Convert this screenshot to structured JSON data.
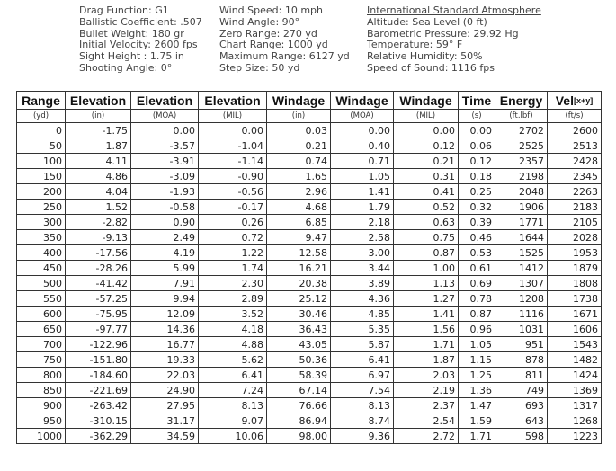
{
  "info": [
    [
      "Drag Function: G1",
      "Ballistic Coefficient: .507",
      "Bullet Weight: 180 gr",
      "Initial Velocity: 2600 fps",
      "Sight Height : 1.75 in",
      "Shooting Angle: 0°"
    ],
    [
      "Wind Speed: 10 mph",
      "Wind Angle: 90°",
      "Zero Range: 270 yd",
      "Chart Range: 1000 yd",
      "Maximum Range: 6127 yd",
      "Step Size: 50 yd"
    ],
    [
      "International Standard Atmosphere",
      "Altitude: Sea Level (0 ft)",
      "Barometric Pressure: 29.92 Hg",
      "Temperature: 59° F",
      "Relative Humidity: 50%",
      "Speed of Sound: 1116 fps"
    ]
  ],
  "table": {
    "headers": [
      "Range",
      "Elevation",
      "Elevation",
      "Elevation",
      "Windage",
      "Windage",
      "Windage",
      "Time",
      "Energy",
      "Vel"
    ],
    "velocity_subscript": "[x+y]",
    "units": [
      "(yd)",
      "(in)",
      "(MOA)",
      "(MIL)",
      "(in)",
      "(MOA)",
      "(MIL)",
      "(s)",
      "(ft.lbf)",
      "(ft/s)"
    ],
    "rows": [
      [
        "0",
        "-1.75",
        "0.00",
        "0.00",
        "0.03",
        "0.00",
        "0.00",
        "0.00",
        "2702",
        "2600"
      ],
      [
        "50",
        "1.87",
        "-3.57",
        "-1.04",
        "0.21",
        "0.40",
        "0.12",
        "0.06",
        "2525",
        "2513"
      ],
      [
        "100",
        "4.11",
        "-3.91",
        "-1.14",
        "0.74",
        "0.71",
        "0.21",
        "0.12",
        "2357",
        "2428"
      ],
      [
        "150",
        "4.86",
        "-3.09",
        "-0.90",
        "1.65",
        "1.05",
        "0.31",
        "0.18",
        "2198",
        "2345"
      ],
      [
        "200",
        "4.04",
        "-1.93",
        "-0.56",
        "2.96",
        "1.41",
        "0.41",
        "0.25",
        "2048",
        "2263"
      ],
      [
        "250",
        "1.52",
        "-0.58",
        "-0.17",
        "4.68",
        "1.79",
        "0.52",
        "0.32",
        "1906",
        "2183"
      ],
      [
        "300",
        "-2.82",
        "0.90",
        "0.26",
        "6.85",
        "2.18",
        "0.63",
        "0.39",
        "1771",
        "2105"
      ],
      [
        "350",
        "-9.13",
        "2.49",
        "0.72",
        "9.47",
        "2.58",
        "0.75",
        "0.46",
        "1644",
        "2028"
      ],
      [
        "400",
        "-17.56",
        "4.19",
        "1.22",
        "12.58",
        "3.00",
        "0.87",
        "0.53",
        "1525",
        "1953"
      ],
      [
        "450",
        "-28.26",
        "5.99",
        "1.74",
        "16.21",
        "3.44",
        "1.00",
        "0.61",
        "1412",
        "1879"
      ],
      [
        "500",
        "-41.42",
        "7.91",
        "2.30",
        "20.38",
        "3.89",
        "1.13",
        "0.69",
        "1307",
        "1808"
      ],
      [
        "550",
        "-57.25",
        "9.94",
        "2.89",
        "25.12",
        "4.36",
        "1.27",
        "0.78",
        "1208",
        "1738"
      ],
      [
        "600",
        "-75.95",
        "12.09",
        "3.52",
        "30.46",
        "4.85",
        "1.41",
        "0.87",
        "1116",
        "1671"
      ],
      [
        "650",
        "-97.77",
        "14.36",
        "4.18",
        "36.43",
        "5.35",
        "1.56",
        "0.96",
        "1031",
        "1606"
      ],
      [
        "700",
        "-122.96",
        "16.77",
        "4.88",
        "43.05",
        "5.87",
        "1.71",
        "1.05",
        "951",
        "1543"
      ],
      [
        "750",
        "-151.80",
        "19.33",
        "5.62",
        "50.36",
        "6.41",
        "1.87",
        "1.15",
        "878",
        "1482"
      ],
      [
        "800",
        "-184.60",
        "22.03",
        "6.41",
        "58.39",
        "6.97",
        "2.03",
        "1.25",
        "811",
        "1424"
      ],
      [
        "850",
        "-221.69",
        "24.90",
        "7.24",
        "67.14",
        "7.54",
        "2.19",
        "1.36",
        "749",
        "1369"
      ],
      [
        "900",
        "-263.42",
        "27.95",
        "8.13",
        "76.66",
        "8.13",
        "2.37",
        "1.47",
        "693",
        "1317"
      ],
      [
        "950",
        "-310.15",
        "31.17",
        "9.07",
        "86.94",
        "8.74",
        "2.54",
        "1.59",
        "643",
        "1268"
      ],
      [
        "1000",
        "-362.29",
        "34.59",
        "10.06",
        "98.00",
        "9.36",
        "2.72",
        "1.71",
        "598",
        "1223"
      ]
    ]
  }
}
